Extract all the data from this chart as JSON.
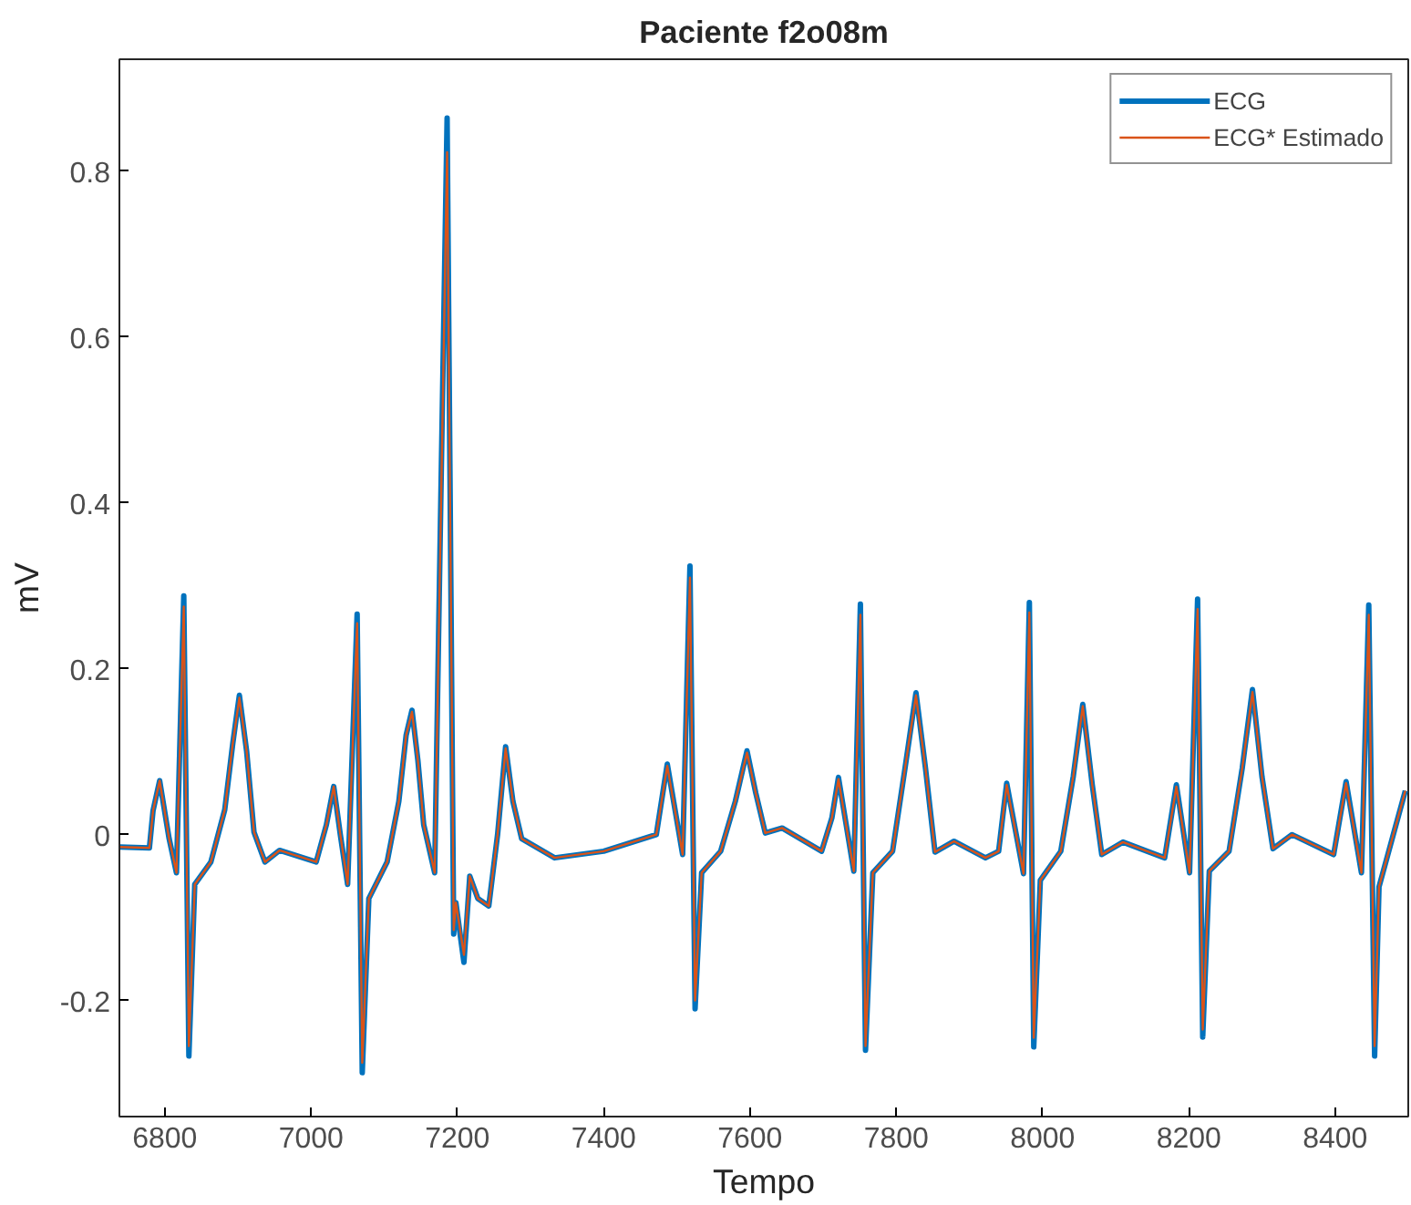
{
  "chart_data": {
    "type": "line",
    "title": "Paciente f2o08m",
    "xlabel": "Tempo",
    "ylabel": "mV",
    "x": [
      6739,
      6779,
      6784,
      6793,
      6806,
      6816,
      6826,
      6833,
      6841,
      6863,
      6882,
      6893,
      6902,
      6912,
      6922,
      6937,
      6957,
      7007,
      7021,
      7031,
      7040,
      7050,
      7063,
      7070,
      7079,
      7104,
      7120,
      7130,
      7138,
      7146,
      7154,
      7169,
      7186,
      7195,
      7198,
      7209,
      7217,
      7228,
      7243,
      7255,
      7266,
      7276,
      7288,
      7333,
      7400,
      7472,
      7487,
      7508,
      7518,
      7525,
      7534,
      7560,
      7580,
      7596,
      7608,
      7621,
      7644,
      7698,
      7712,
      7721,
      7742,
      7751,
      7758,
      7768,
      7795,
      7812,
      7827,
      7840,
      7853,
      7879,
      7922,
      7940,
      7951,
      7974,
      7982,
      7988,
      7997,
      8025,
      8042,
      8055,
      8068,
      8081,
      8110,
      8167,
      8183,
      8201,
      8212,
      8219,
      8228,
      8255,
      8273,
      8287,
      8300,
      8315,
      8341,
      8398,
      8415,
      8436,
      8446,
      8454,
      8460,
      8496
    ],
    "series": [
      {
        "name": "ECG",
        "color": "#0072bd",
        "values": [
          -0.015,
          -0.016,
          0.029,
          0.065,
          -0.005,
          -0.046,
          0.288,
          -0.267,
          -0.06,
          -0.033,
          0.03,
          0.11,
          0.168,
          0.1,
          0.003,
          -0.033,
          -0.019,
          -0.033,
          0.012,
          0.058,
          0.0,
          -0.06,
          0.266,
          -0.287,
          -0.077,
          -0.033,
          0.04,
          0.12,
          0.15,
          0.09,
          0.012,
          -0.046,
          0.864,
          -0.12,
          -0.082,
          -0.154,
          -0.05,
          -0.077,
          -0.086,
          0.0,
          0.106,
          0.04,
          -0.005,
          -0.028,
          -0.02,
          0.0,
          0.085,
          -0.024,
          0.324,
          -0.21,
          -0.046,
          -0.02,
          0.04,
          0.101,
          0.05,
          0.002,
          0.008,
          -0.02,
          0.02,
          0.069,
          -0.044,
          0.278,
          -0.26,
          -0.046,
          -0.02,
          0.08,
          0.171,
          0.08,
          -0.021,
          -0.008,
          -0.028,
          -0.02,
          0.062,
          -0.047,
          0.28,
          -0.256,
          -0.055,
          -0.02,
          0.07,
          0.157,
          0.06,
          -0.024,
          -0.009,
          -0.028,
          0.06,
          -0.046,
          0.284,
          -0.244,
          -0.044,
          -0.02,
          0.08,
          0.175,
          0.07,
          -0.017,
          0.0,
          -0.024,
          0.064,
          -0.046,
          0.277,
          -0.267,
          -0.063,
          0.053
        ]
      },
      {
        "name": "ECG* Estimado",
        "color": "#d95319",
        "values": [
          -0.015,
          -0.016,
          0.029,
          0.065,
          -0.005,
          -0.046,
          0.275,
          -0.255,
          -0.06,
          -0.033,
          0.03,
          0.11,
          0.165,
          0.1,
          0.003,
          -0.033,
          -0.019,
          -0.033,
          0.012,
          0.058,
          0.0,
          -0.06,
          0.255,
          -0.275,
          -0.077,
          -0.033,
          0.04,
          0.12,
          0.148,
          0.09,
          0.012,
          -0.046,
          0.823,
          -0.115,
          -0.082,
          -0.145,
          -0.05,
          -0.077,
          -0.086,
          0.0,
          0.104,
          0.04,
          -0.005,
          -0.028,
          -0.02,
          0.0,
          0.083,
          -0.024,
          0.31,
          -0.2,
          -0.046,
          -0.02,
          0.04,
          0.099,
          0.05,
          0.002,
          0.008,
          -0.02,
          0.02,
          0.067,
          -0.044,
          0.265,
          -0.255,
          -0.046,
          -0.02,
          0.08,
          0.168,
          0.08,
          -0.021,
          -0.008,
          -0.028,
          -0.02,
          0.06,
          -0.047,
          0.268,
          -0.245,
          -0.055,
          -0.02,
          0.07,
          0.155,
          0.06,
          -0.024,
          -0.009,
          -0.028,
          0.058,
          -0.046,
          0.272,
          -0.235,
          -0.044,
          -0.02,
          0.08,
          0.172,
          0.07,
          -0.017,
          0.0,
          -0.024,
          0.062,
          -0.046,
          0.265,
          -0.255,
          -0.063,
          0.053
        ]
      }
    ],
    "xlim": [
      6738,
      8500
    ],
    "ylim": [
      -0.34,
      0.935
    ],
    "xticks": [
      6800,
      7000,
      7200,
      7400,
      7600,
      7800,
      8000,
      8200,
      8400
    ],
    "yticks": [
      -0.2,
      0,
      0.2,
      0.4,
      0.6,
      0.8
    ],
    "grid": false,
    "legend": "top right",
    "marker": "none",
    "line_style": "solid"
  }
}
